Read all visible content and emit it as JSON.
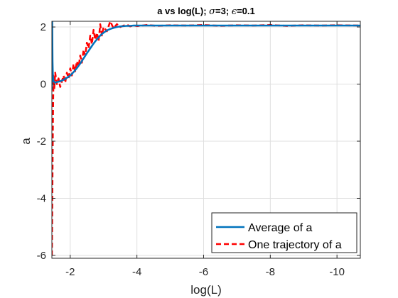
{
  "chart_data": {
    "type": "line",
    "title": "a vs log(L); σ=3; ϵ=0.1",
    "title_parts": {
      "prefix": "a vs log(L); ",
      "sigma_symbol": "σ",
      "sigma_value": "=3; ",
      "eps_symbol": "ϵ",
      "eps_value": "=0.1"
    },
    "xlabel": "log(L)",
    "ylabel": "a",
    "xlim": [
      -1.45,
      -10.7
    ],
    "x_reversed": true,
    "ylim": [
      -6.1,
      2.2
    ],
    "xticks": [
      -2,
      -4,
      -6,
      -8,
      -10
    ],
    "xtick_labels": [
      "-2",
      "-4",
      "-6",
      "-8",
      "-10"
    ],
    "yticks": [
      2,
      0,
      -2,
      -4,
      -6
    ],
    "ytick_labels": [
      "2",
      "0",
      "-2",
      "-4",
      "-6"
    ],
    "grid": true,
    "legend_placement": "bottom-right",
    "series": [
      {
        "name": "Average of a",
        "color": "#0072BD",
        "style": "solid",
        "x": [
          -1.45,
          -1.46,
          -1.47,
          -1.48,
          -1.5,
          -1.55,
          -1.6,
          -1.7,
          -1.8,
          -1.9,
          -2.0,
          -2.1,
          -2.2,
          -2.3,
          -2.4,
          -2.5,
          -2.6,
          -2.7,
          -2.8,
          -2.9,
          -3.0,
          -3.1,
          -3.2,
          -3.3,
          -3.4,
          -3.5,
          -3.6,
          -3.7,
          -3.8,
          -3.9,
          -4.0,
          -4.2,
          -4.5,
          -5.0,
          -6.0,
          -7.0,
          -8.0,
          -9.0,
          -10.0,
          -10.7
        ],
        "y": [
          -0.2,
          2.2,
          0.8,
          0.3,
          0.1,
          0.05,
          0.07,
          0.1,
          0.15,
          0.22,
          0.3,
          0.42,
          0.56,
          0.72,
          0.9,
          1.08,
          1.25,
          1.42,
          1.57,
          1.7,
          1.8,
          1.88,
          1.93,
          1.97,
          2.0,
          2.02,
          2.03,
          2.04,
          2.04,
          2.05,
          2.05,
          2.05,
          2.05,
          2.05,
          2.05,
          2.05,
          2.05,
          2.05,
          2.05,
          2.05
        ]
      },
      {
        "name": "One trajectory of a",
        "color": "#FF0000",
        "style": "dashed",
        "x": [
          -1.45,
          -1.46,
          -1.47,
          -1.48,
          -1.49,
          -1.5,
          -1.52,
          -1.55,
          -1.6,
          -1.65,
          -1.7,
          -1.75,
          -1.8,
          -1.85,
          -1.9,
          -1.95,
          -2.0,
          -2.05,
          -2.1,
          -2.15,
          -2.2,
          -2.25,
          -2.3,
          -2.35,
          -2.4,
          -2.45,
          -2.5,
          -2.55,
          -2.6,
          -2.65,
          -2.7,
          -2.75,
          -2.8,
          -2.85,
          -2.9,
          -2.95,
          -3.0,
          -3.1,
          -3.2,
          -3.3,
          -3.4,
          -3.5,
          -3.6,
          -3.7,
          -3.8,
          -3.9,
          -4.0,
          -4.3,
          -4.6,
          -5.0,
          -5.5,
          -6.0,
          -6.5,
          -7.0,
          -7.5,
          -8.0,
          -8.5,
          -9.0,
          -9.5,
          -10.0,
          -10.7
        ],
        "y": [
          -6.0,
          -4.5,
          -3.0,
          -1.5,
          -0.4,
          0.3,
          -0.2,
          0.4,
          0.0,
          0.2,
          -0.1,
          0.1,
          0.3,
          0.05,
          0.4,
          0.2,
          0.55,
          0.3,
          0.7,
          0.45,
          0.8,
          0.6,
          1.0,
          0.75,
          1.2,
          1.0,
          1.45,
          1.25,
          1.7,
          1.4,
          1.9,
          1.55,
          1.8,
          1.5,
          2.1,
          1.7,
          2.0,
          1.85,
          2.2,
          1.95,
          2.1,
          2.0,
          2.05,
          2.08,
          2.02,
          2.06,
          2.03,
          2.07,
          2.04,
          2.06,
          2.05,
          2.07,
          2.04,
          2.06,
          2.05,
          2.07,
          2.04,
          2.06,
          2.05,
          2.06,
          2.05
        ]
      }
    ]
  }
}
